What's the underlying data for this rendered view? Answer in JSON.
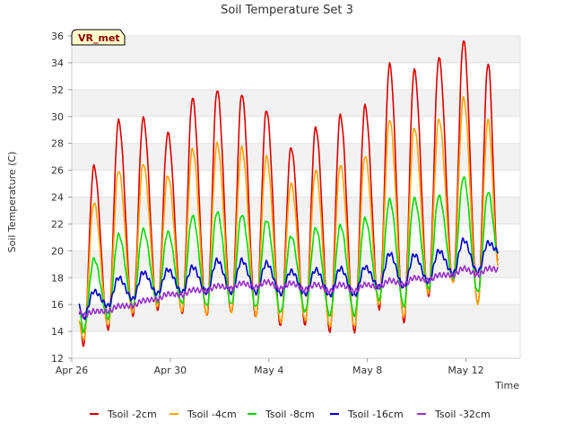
{
  "chart_data": {
    "type": "line",
    "title": "Soil Temperature Set 3",
    "xlabel": "Time",
    "ylabel": "Soil Temperature (C)",
    "station_label": "VR_met",
    "ylim": [
      12,
      36
    ],
    "y_ticks": [
      12,
      14,
      16,
      18,
      20,
      22,
      24,
      26,
      28,
      30,
      32,
      34,
      36
    ],
    "x_range_days": [
      0,
      18.2
    ],
    "x_ticks": [
      {
        "day": 0,
        "label": "Apr 26"
      },
      {
        "day": 4,
        "label": "Apr 30"
      },
      {
        "day": 8,
        "label": "May 4"
      },
      {
        "day": 12,
        "label": "May 8"
      },
      {
        "day": 16,
        "label": "May 12"
      }
    ],
    "grid": "horizontal-bands",
    "legend_position": "bottom",
    "data_start_day": 0.3,
    "data_end_day": 17.3,
    "daily_peak_day": [
      0.9,
      1.9,
      2.9,
      3.9,
      4.9,
      5.9,
      6.9,
      7.9,
      8.9,
      9.9,
      10.9,
      11.9,
      12.9,
      13.9,
      14.9,
      15.9,
      16.9
    ],
    "series": [
      {
        "name": "Tsoil -2cm",
        "color": "#dd0000",
        "start_value": 14.8,
        "end_value": 19.2,
        "daily_max": [
          26.3,
          29.7,
          29.9,
          28.8,
          31.4,
          32.0,
          31.7,
          30.5,
          27.7,
          29.2,
          30.1,
          30.8,
          33.9,
          33.5,
          34.4,
          35.7,
          34.0
        ],
        "daily_min": [
          13.0,
          14.2,
          15.2,
          15.6,
          15.3,
          15.1,
          15.3,
          15.0,
          14.4,
          14.5,
          14.0,
          14.0,
          15.7,
          14.7,
          16.6,
          17.6,
          16.0
        ]
      },
      {
        "name": "Tsoil -4cm",
        "color": "#ffa500",
        "start_value": 14.7,
        "end_value": 19.0,
        "daily_max": [
          23.6,
          26.0,
          26.5,
          25.6,
          27.6,
          28.0,
          27.7,
          27.0,
          25.0,
          26.0,
          26.4,
          27.1,
          29.8,
          29.2,
          29.8,
          31.4,
          29.7
        ],
        "daily_min": [
          13.3,
          14.4,
          15.3,
          15.8,
          15.5,
          15.3,
          15.5,
          15.2,
          14.7,
          14.8,
          14.3,
          14.3,
          15.9,
          15.0,
          16.8,
          17.7,
          16.1
        ]
      },
      {
        "name": "Tsoil -8cm",
        "color": "#00dd00",
        "start_value": 15.5,
        "end_value": 19.8,
        "daily_max": [
          19.4,
          21.2,
          21.6,
          21.4,
          22.6,
          22.9,
          22.7,
          22.3,
          21.1,
          21.7,
          21.9,
          22.4,
          23.8,
          23.9,
          24.1,
          25.5,
          24.4
        ],
        "daily_min": [
          14.0,
          15.0,
          15.9,
          16.2,
          16.1,
          15.9,
          16.0,
          15.8,
          15.4,
          15.5,
          15.2,
          15.2,
          16.4,
          15.9,
          17.2,
          17.9,
          16.9
        ]
      },
      {
        "name": "Tsoil -16cm",
        "color": "#0000cc",
        "start_value": 15.9,
        "end_value": 20.0,
        "daily_max": [
          17.0,
          18.0,
          18.4,
          18.6,
          18.8,
          19.3,
          19.3,
          19.1,
          18.5,
          18.6,
          18.7,
          18.8,
          19.8,
          19.7,
          20.0,
          20.8,
          20.6
        ],
        "daily_min": [
          15.0,
          15.9,
          16.4,
          16.8,
          16.9,
          16.9,
          16.9,
          16.9,
          16.8,
          16.8,
          16.7,
          16.7,
          17.3,
          17.3,
          17.7,
          18.3,
          18.4
        ]
      },
      {
        "name": "Tsoil -32cm",
        "color": "#9933cc",
        "start_value": 15.4,
        "end_value": 18.6,
        "daily_max": [
          15.5,
          15.9,
          16.3,
          16.8,
          17.1,
          17.4,
          17.6,
          17.7,
          17.6,
          17.5,
          17.5,
          17.5,
          17.8,
          18.0,
          18.2,
          18.7,
          18.7
        ],
        "daily_min": [
          15.2,
          15.5,
          15.9,
          16.4,
          16.7,
          17.0,
          17.2,
          17.3,
          17.2,
          17.1,
          17.0,
          17.0,
          17.3,
          17.5,
          17.8,
          18.2,
          18.2
        ]
      }
    ]
  }
}
